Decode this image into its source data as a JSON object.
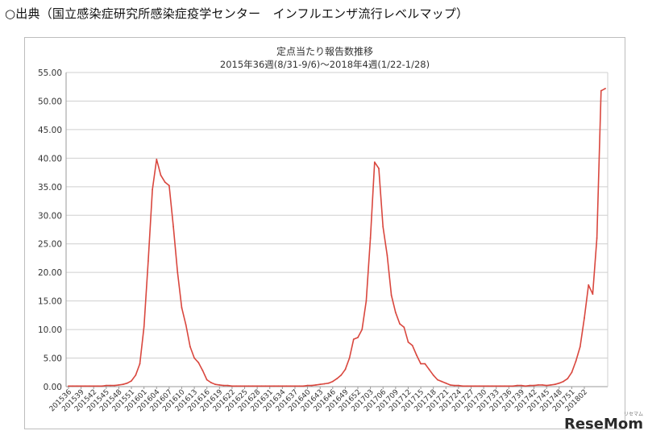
{
  "source_caption": "○出典（国立感染症研究所感染症疫学センター　インフルエンザ流行レベルマップ）",
  "watermark": {
    "text": "ReseMom",
    "sub": "リセマム"
  },
  "colors": {
    "line": "#d9473e",
    "grid": "#cfcfcf",
    "axis": "#9a9a9a",
    "text": "#333333"
  },
  "chart_data": {
    "type": "line",
    "title": "定点当たり報告数推移",
    "subtitle": "2015年36週(8/31-9/6)～2018年4週(1/22-1/28)",
    "xlabel": "",
    "ylabel": "",
    "ylim": [
      0,
      55
    ],
    "yticks": [
      "0.00",
      "5.00",
      "10.00",
      "15.00",
      "20.00",
      "25.00",
      "30.00",
      "35.00",
      "40.00",
      "45.00",
      "50.00",
      "55.00"
    ],
    "grid": true,
    "xtick_labels": [
      "201536",
      "201539",
      "201542",
      "201545",
      "201548",
      "201551",
      "201601",
      "201604",
      "201607",
      "201610",
      "201613",
      "201616",
      "201619",
      "201622",
      "201625",
      "201628",
      "201631",
      "201634",
      "201637",
      "201640",
      "201643",
      "201646",
      "201649",
      "201652",
      "201703",
      "201706",
      "201709",
      "201712",
      "201715",
      "201718",
      "201721",
      "201724",
      "201727",
      "201730",
      "201733",
      "201736",
      "201739",
      "201742",
      "201745",
      "201748",
      "201751",
      "201802"
    ],
    "series": [
      {
        "name": "",
        "values": [
          0.1,
          0.1,
          0.1,
          0.1,
          0.1,
          0.1,
          0.1,
          0.1,
          0.1,
          0.2,
          0.2,
          0.2,
          0.3,
          0.4,
          0.6,
          1.0,
          2.0,
          4.0,
          10.5,
          22.0,
          34.5,
          39.8,
          37.0,
          35.8,
          35.2,
          28.0,
          20.0,
          13.8,
          10.8,
          7.0,
          5.0,
          4.2,
          2.8,
          1.2,
          0.7,
          0.4,
          0.3,
          0.2,
          0.2,
          0.1,
          0.1,
          0.1,
          0.1,
          0.1,
          0.1,
          0.1,
          0.1,
          0.1,
          0.1,
          0.1,
          0.1,
          0.1,
          0.1,
          0.1,
          0.1,
          0.1,
          0.1,
          0.2,
          0.2,
          0.3,
          0.4,
          0.5,
          0.6,
          0.9,
          1.4,
          2.0,
          3.0,
          5.0,
          8.3,
          8.6,
          10.0,
          15.0,
          26.0,
          39.3,
          38.2,
          28.0,
          23.0,
          16.0,
          13.0,
          11.0,
          10.4,
          7.8,
          7.2,
          5.5,
          4.0,
          4.0,
          3.0,
          2.0,
          1.2,
          0.9,
          0.6,
          0.3,
          0.2,
          0.2,
          0.1,
          0.1,
          0.1,
          0.1,
          0.1,
          0.1,
          0.1,
          0.1,
          0.1,
          0.1,
          0.1,
          0.1,
          0.1,
          0.2,
          0.2,
          0.1,
          0.2,
          0.2,
          0.3,
          0.3,
          0.2,
          0.3,
          0.4,
          0.6,
          0.9,
          1.4,
          2.5,
          4.5,
          7.0,
          12.0,
          17.8,
          16.2,
          26.0,
          51.8,
          52.2
        ]
      }
    ]
  }
}
